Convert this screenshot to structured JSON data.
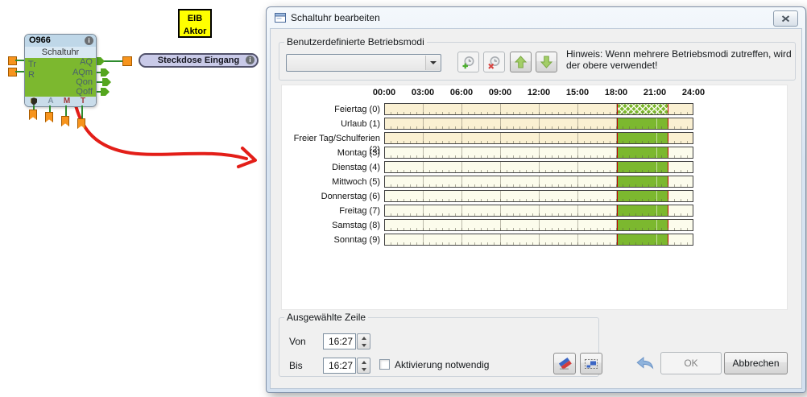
{
  "colors": {
    "bar_green": "#7CB82F",
    "bar_border_red": "#C00000",
    "special_row_bg": "#FAF0D2",
    "day_row_bg": "#FCFCEC",
    "eib_yellow": "#FFFF00",
    "pill_lavender": "#C9CAE8",
    "block_green": "#7CB82F",
    "connector_orange": "#F7941D",
    "arrow_red": "#E31E18"
  },
  "diagram": {
    "eib_label": {
      "line1": "EIB",
      "line2": "Aktor"
    },
    "block": {
      "id": "O966",
      "name": "Schaltuhr",
      "inputs": [
        "Tr",
        "R"
      ],
      "outputs": [
        "AQ",
        "AQm",
        "Qon",
        "Qoff"
      ],
      "footer_letters": [
        "A",
        "M",
        "T"
      ]
    },
    "wire_label": "Steckdose Eingang"
  },
  "dialog": {
    "title": "Schaltuhr bearbeiten",
    "modes": {
      "group_label": "Benutzerdefinierte Betriebsmodi",
      "dropdown_value": "",
      "hint_line1": "Hinweis: Wenn mehrere Betriebsmodi zutreffen, wird",
      "hint_line2": "der obere verwendet!"
    },
    "schedule": {
      "time_labels": [
        "00:00",
        "03:00",
        "06:00",
        "09:00",
        "12:00",
        "15:00",
        "18:00",
        "21:00",
        "24:00"
      ],
      "axis_start_hour": 0,
      "axis_end_hour": 24,
      "bar_color": "#7CB82F",
      "bar_border_color": "#C00000",
      "special_row_bg": "#FAF0D2",
      "day_row_bg": "#FCFCEC",
      "rows": [
        {
          "label": "Feiertag (0)",
          "special": true,
          "selected": true,
          "bar_start_hour": 18,
          "bar_end_hour": 22
        },
        {
          "label": "Urlaub (1)",
          "special": true,
          "selected": false,
          "bar_start_hour": 18,
          "bar_end_hour": 22
        },
        {
          "label": "Freier Tag/Schulferien (2)",
          "special": true,
          "selected": false,
          "bar_start_hour": 18,
          "bar_end_hour": 22
        },
        {
          "label": "Montag (3)",
          "special": false,
          "selected": false,
          "bar_start_hour": 18,
          "bar_end_hour": 22
        },
        {
          "label": "Dienstag (4)",
          "special": false,
          "selected": false,
          "bar_start_hour": 18,
          "bar_end_hour": 22
        },
        {
          "label": "Mittwoch (5)",
          "special": false,
          "selected": false,
          "bar_start_hour": 18,
          "bar_end_hour": 22
        },
        {
          "label": "Donnerstag (6)",
          "special": false,
          "selected": false,
          "bar_start_hour": 18,
          "bar_end_hour": 22
        },
        {
          "label": "Freitag (7)",
          "special": false,
          "selected": false,
          "bar_start_hour": 18,
          "bar_end_hour": 22
        },
        {
          "label": "Samstag (8)",
          "special": false,
          "selected": false,
          "bar_start_hour": 18,
          "bar_end_hour": 22
        },
        {
          "label": "Sonntag (9)",
          "special": false,
          "selected": false,
          "bar_start_hour": 18,
          "bar_end_hour": 22
        }
      ]
    },
    "selected_row": {
      "group_label": "Ausgewählte Zeile",
      "von_label": "Von",
      "von_value": "16:27",
      "bis_label": "Bis",
      "bis_value": "16:27",
      "checkbox_label": "Aktivierung notwendig",
      "checkbox_checked": false
    },
    "footer": {
      "ok_label": "OK",
      "ok_enabled": false,
      "cancel_label": "Abbrechen"
    }
  }
}
